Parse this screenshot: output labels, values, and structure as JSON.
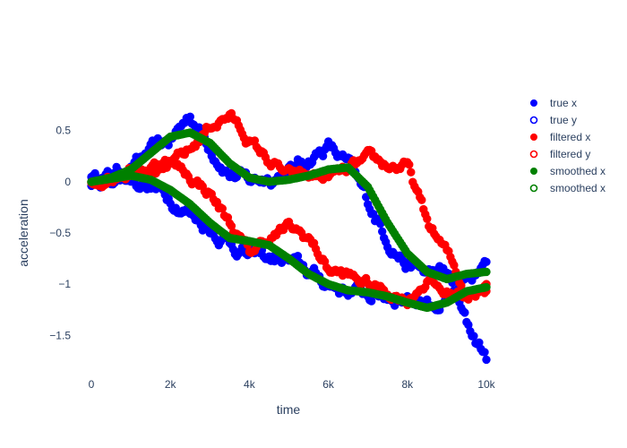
{
  "chart_data": {
    "type": "scatter",
    "xlabel": "time",
    "ylabel": "acceleration",
    "xlim": [
      -500,
      10500
    ],
    "ylim": [
      -1.9,
      0.9
    ],
    "x_ticks": [
      {
        "value": 0,
        "label": "0"
      },
      {
        "value": 2000,
        "label": "2k"
      },
      {
        "value": 4000,
        "label": "4k"
      },
      {
        "value": 6000,
        "label": "6k"
      },
      {
        "value": 8000,
        "label": "8k"
      },
      {
        "value": 10000,
        "label": "10k"
      }
    ],
    "y_ticks": [
      {
        "value": 0.5,
        "label": "0.5"
      },
      {
        "value": 0,
        "label": "0"
      },
      {
        "value": -0.5,
        "label": "−0.5"
      },
      {
        "value": -1,
        "label": "−1"
      },
      {
        "value": -1.5,
        "label": "−1.5"
      }
    ],
    "grid": false,
    "legend_position": "top-right",
    "series": [
      {
        "name": "true x",
        "color": "#0000ff",
        "marker": "filled",
        "x": [
          0,
          1000,
          2000,
          2500,
          3000,
          3500,
          4000,
          5000,
          6000,
          6500,
          7000,
          7500,
          8000,
          8500,
          9000,
          9500,
          10000
        ],
        "y": [
          0.0,
          0.15,
          0.4,
          0.65,
          0.35,
          0.1,
          0.0,
          0.1,
          0.35,
          0.15,
          -0.2,
          -0.55,
          -0.8,
          -0.9,
          -0.9,
          -1.4,
          -1.7
        ]
      },
      {
        "name": "true y",
        "color": "#0000ff",
        "marker": "open",
        "x": [
          0,
          1000,
          2000,
          3000,
          4000,
          5000,
          6000,
          7000,
          8000,
          9000,
          10000
        ],
        "y": [
          0.0,
          0.05,
          -0.15,
          -0.45,
          -0.72,
          -0.78,
          -1.0,
          -1.1,
          -1.12,
          -1.2,
          -0.85
        ]
      },
      {
        "name": "filtered x",
        "color": "#ff0000",
        "marker": "filled",
        "x": [
          0,
          1000,
          2000,
          2500,
          3000,
          3500,
          4000,
          4500,
          5000,
          6000,
          6500,
          7000,
          7500,
          8000,
          8500,
          9000,
          9500,
          10000
        ],
        "y": [
          0.0,
          0.15,
          0.15,
          0.3,
          0.55,
          0.65,
          0.4,
          0.2,
          0.05,
          0.05,
          0.1,
          0.2,
          0.15,
          0.15,
          -0.4,
          -0.7,
          -1.1,
          -1.0
        ]
      },
      {
        "name": "filtered y",
        "color": "#ff0000",
        "marker": "open",
        "x": [
          0,
          1000,
          2000,
          3000,
          3500,
          4000,
          4500,
          5000,
          5500,
          6000,
          7000,
          8000,
          8500,
          9000,
          10000
        ],
        "y": [
          0.0,
          0.1,
          0.2,
          -0.1,
          -0.4,
          -0.7,
          -0.55,
          -0.45,
          -0.55,
          -0.85,
          -1.0,
          -1.15,
          -0.95,
          -1.1,
          -1.05
        ]
      },
      {
        "name": "smoothed x",
        "color": "#008000",
        "marker": "filled",
        "x": [
          0,
          500,
          1000,
          1500,
          2000,
          2500,
          3000,
          3500,
          4000,
          4500,
          5000,
          5500,
          6000,
          6500,
          7000,
          7500,
          8000,
          8500,
          9000,
          9500,
          10000
        ],
        "y": [
          0.0,
          0.04,
          0.12,
          0.28,
          0.44,
          0.48,
          0.38,
          0.18,
          0.04,
          0.0,
          0.02,
          0.06,
          0.12,
          0.14,
          -0.05,
          -0.4,
          -0.7,
          -0.88,
          -0.95,
          -0.9,
          -0.88
        ]
      },
      {
        "name": "smoothed x",
        "color": "#008000",
        "marker": "open",
        "x": [
          0,
          500,
          1000,
          1500,
          2000,
          2500,
          3000,
          3500,
          4000,
          4500,
          5000,
          5500,
          6000,
          6500,
          7000,
          7500,
          8000,
          8500,
          9000,
          9500,
          10000
        ],
        "y": [
          0.0,
          0.03,
          0.06,
          0.02,
          -0.08,
          -0.22,
          -0.4,
          -0.55,
          -0.58,
          -0.62,
          -0.75,
          -0.9,
          -1.0,
          -1.06,
          -1.08,
          -1.12,
          -1.18,
          -1.23,
          -1.18,
          -1.07,
          -1.03
        ]
      }
    ]
  }
}
